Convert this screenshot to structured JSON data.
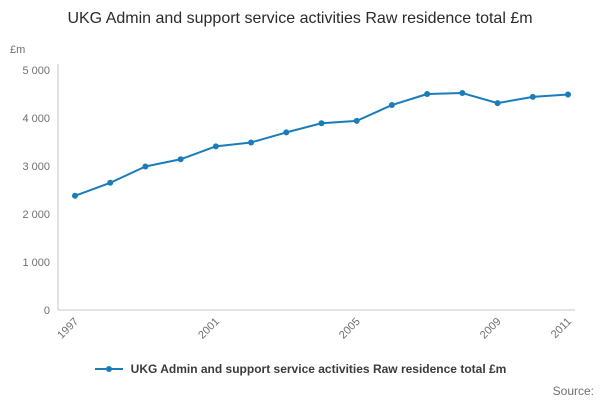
{
  "page": {
    "source_label": "Source:"
  },
  "legend": {
    "label": "UKG Admin and support service activities Raw residence total £m"
  },
  "chart_data": {
    "type": "line",
    "title": "UKG Admin and support service activities Raw residence total £m",
    "unit_label": "£m",
    "x": [
      1997,
      1998,
      1999,
      2000,
      2001,
      2002,
      2003,
      2004,
      2005,
      2006,
      2007,
      2008,
      2009,
      2010,
      2011
    ],
    "series": [
      {
        "name": "UKG Admin and support service activities Raw residence total £m",
        "values": [
          2380,
          2650,
          2990,
          3140,
          3410,
          3490,
          3700,
          3890,
          3940,
          4270,
          4500,
          4520,
          4310,
          4440,
          4490
        ]
      }
    ],
    "ylim": [
      0,
      5000
    ],
    "y_ticks": [
      0,
      1000,
      2000,
      3000,
      4000,
      5000
    ],
    "y_tick_labels": [
      "0",
      "1 000",
      "2 000",
      "3 000",
      "4 000",
      "5 000"
    ],
    "x_tick_labels": [
      "1997",
      "2001",
      "2005",
      "2009",
      "2011"
    ],
    "grid": false,
    "legend_position": "bottom",
    "marker": "circle",
    "colors": {
      "line": "#1a7cb8",
      "axis": "#c9c9c9",
      "tick_text": "#707070"
    }
  }
}
